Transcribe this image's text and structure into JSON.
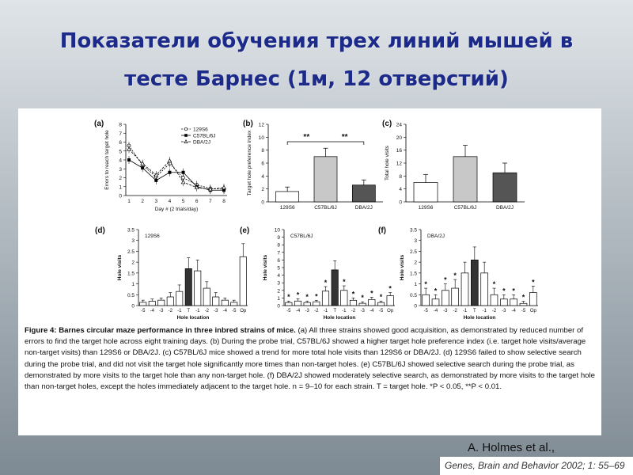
{
  "slide": {
    "title_line1": "Показатели обучения трех линий мышей в",
    "title_line2": "тесте Барнес (1м, 12 отверстий)",
    "credit": "A. Holmes  et al.,",
    "journal": "Genes, Brain and Behavior 2002; 1: 55–69"
  },
  "caption": {
    "figure_label": "Figure 4:",
    "figure_title": "Barnes circular maze performance in three inbred strains of mice.",
    "text": "(a) All three strains showed good acquisition, as demonstrated by reduced number of errors to find the target hole across eight training days. (b) During the probe trial, C57BL/6J showed a higher target hole preference index (i.e. target hole visits/average non-target visits) than 129S6 or DBA/2J. (c) C57BL/6J mice showed a trend for more total hole visits than 129S6 or DBA/2J. (d) 129S6 failed to show selective search during the probe trial, and did not visit the target hole significantly more times than non-target holes. (e) C57BL/6J showed selective search during the probe trial, as demonstrated by more visits to the target hole than any non-target hole. (f) DBA/2J showed moderately selective search, as demonstrated by more visits to the target hole than non-target holes, except the holes immediately adjacent to the target hole. n = 9–10 for each strain. T = target hole. *P < 0.05, **P < 0.01."
  },
  "colors": {
    "s129": "#ffffff",
    "c57": "#c8c8c8",
    "dba": "#555555",
    "target": "#333333"
  },
  "chart_data": [
    {
      "panel": "(a)",
      "type": "line",
      "xlabel": "Day # (2 trials/day)",
      "ylabel": "Errors to reach target hole",
      "x": [
        1,
        2,
        3,
        4,
        5,
        6,
        7,
        8
      ],
      "xlim": [
        1,
        8
      ],
      "ylim": [
        0,
        8
      ],
      "yticks": [
        0,
        1,
        2,
        3,
        4,
        5,
        6,
        7,
        8
      ],
      "legend": "top-right",
      "series": [
        {
          "name": "129S6",
          "marker": "circle-open",
          "values": [
            5.6,
            3.4,
            2.1,
            3.6,
            2.0,
            1.2,
            0.8,
            0.7
          ]
        },
        {
          "name": "C57BL/6J",
          "marker": "square-filled",
          "values": [
            4.0,
            3.1,
            1.7,
            2.6,
            2.6,
            1.0,
            0.6,
            0.6
          ]
        },
        {
          "name": "DBA/2J",
          "marker": "triangle-open",
          "values": [
            5.2,
            3.6,
            2.3,
            3.9,
            1.5,
            0.9,
            0.7,
            0.9
          ]
        }
      ]
    },
    {
      "panel": "(b)",
      "type": "bar",
      "ylabel": "Target hole preference index",
      "categories": [
        "129S6",
        "C57BL/6J",
        "DBA/2J"
      ],
      "values": [
        1.6,
        7.0,
        2.6
      ],
      "errors": [
        0.7,
        1.3,
        0.8
      ],
      "ylim": [
        0,
        12
      ],
      "yticks": [
        0,
        2,
        4,
        6,
        8,
        10,
        12
      ],
      "annotations": [
        "**",
        "**"
      ]
    },
    {
      "panel": "(c)",
      "type": "bar",
      "ylabel": "Total hole visits",
      "categories": [
        "129S6",
        "C57BL/6J",
        "DBA/2J"
      ],
      "values": [
        6.0,
        14.0,
        9.0
      ],
      "errors": [
        2.5,
        3.5,
        3.0
      ],
      "ylim": [
        0,
        24
      ],
      "yticks": [
        0,
        4,
        8,
        12,
        16,
        20,
        24
      ]
    },
    {
      "panel": "(d)",
      "type": "bar",
      "strain_label": "129S6",
      "xlabel": "Hole location",
      "ylabel": "Hole visits",
      "categories": [
        "-5",
        "-4",
        "-3",
        "-2",
        "-1",
        "T",
        "-1",
        "-2",
        "-3",
        "-4",
        "-5",
        "Op"
      ],
      "values": [
        0.15,
        0.2,
        0.25,
        0.4,
        0.65,
        1.7,
        1.6,
        0.8,
        0.4,
        0.25,
        0.15,
        2.25
      ],
      "errors": [
        0.1,
        0.1,
        0.1,
        0.2,
        0.3,
        0.5,
        0.5,
        0.3,
        0.2,
        0.1,
        0.1,
        0.6
      ],
      "ylim": [
        0,
        3.5
      ],
      "yticks": [
        0,
        0.5,
        1,
        1.5,
        2,
        2.5,
        3,
        3.5
      ],
      "stars": [
        "",
        "",
        "",
        "",
        "",
        "",
        "",
        "",
        "",
        "",
        "",
        ""
      ]
    },
    {
      "panel": "(e)",
      "type": "bar",
      "strain_label": "C57BL/6J",
      "xlabel": "Hole location",
      "ylabel": "Hole visits",
      "categories": [
        "-5",
        "-4",
        "-3",
        "-2",
        "-1",
        "T",
        "-1",
        "-2",
        "-3",
        "-4",
        "-5",
        "Op"
      ],
      "values": [
        0.4,
        0.6,
        0.4,
        0.5,
        1.9,
        4.7,
        2.0,
        0.7,
        0.3,
        0.8,
        0.4,
        1.3
      ],
      "errors": [
        0.2,
        0.3,
        0.2,
        0.2,
        0.6,
        1.2,
        0.6,
        0.3,
        0.2,
        0.3,
        0.2,
        0.4
      ],
      "ylim": [
        0,
        10
      ],
      "yticks": [
        0,
        1,
        2,
        3,
        4,
        5,
        6,
        7,
        8,
        9,
        10
      ],
      "stars": [
        "*",
        "*",
        "*",
        "*",
        "*",
        "",
        "*",
        "*",
        "*",
        "*",
        "*",
        "*"
      ]
    },
    {
      "panel": "(f)",
      "type": "bar",
      "strain_label": "DBA/2J",
      "xlabel": "Hole location",
      "ylabel": "Hole visits",
      "categories": [
        "-5",
        "-4",
        "-3",
        "-2",
        "-1",
        "T",
        "-1",
        "-2",
        "-3",
        "-4",
        "-5",
        "Op"
      ],
      "values": [
        0.5,
        0.3,
        0.7,
        0.8,
        1.5,
        2.1,
        1.5,
        0.5,
        0.3,
        0.3,
        0.1,
        0.6
      ],
      "errors": [
        0.3,
        0.2,
        0.3,
        0.4,
        0.5,
        0.6,
        0.5,
        0.3,
        0.2,
        0.2,
        0.1,
        0.3
      ],
      "ylim": [
        0,
        3.5
      ],
      "yticks": [
        0,
        0.5,
        1,
        1.5,
        2,
        2.5,
        3,
        3.5
      ],
      "stars": [
        "*",
        "*",
        "*",
        "*",
        "",
        "",
        "",
        "*",
        "*",
        "*",
        "*",
        "*"
      ]
    }
  ]
}
